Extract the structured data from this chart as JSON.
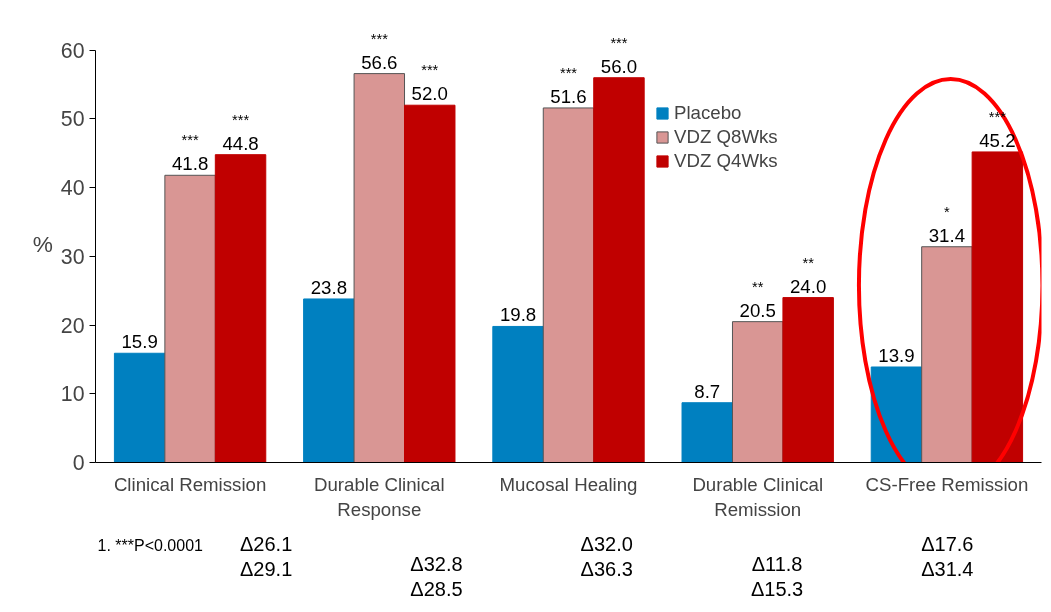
{
  "chart_data": {
    "type": "bar",
    "ylabel": "%",
    "categories": [
      "Clinical Remission",
      "Durable Clinical Response",
      "Mucosal Healing",
      "Durable Clinical Remission",
      "CS-Free Remission"
    ],
    "series": [
      {
        "name": "Placebo",
        "color": "#0080c0",
        "values": [
          15.9,
          23.8,
          19.8,
          8.7,
          13.9
        ],
        "value_labels": [
          "15.9",
          "23.8",
          "19.8",
          "8.7",
          "13.9"
        ]
      },
      {
        "name": "VDZ Q8Wks",
        "color": "#d99694",
        "values": [
          41.8,
          56.6,
          51.6,
          20.5,
          31.4
        ],
        "value_labels": [
          "41.8",
          "56.6",
          "51.6",
          "20.5",
          "31.4"
        ]
      },
      {
        "name": "VDZ Q4Wks",
        "color": "#c00000",
        "values": [
          44.8,
          52.0,
          56.0,
          24.0,
          45.2
        ],
        "value_labels": [
          "44.8",
          "52.0",
          "56.0",
          "24.0",
          "45.2"
        ]
      }
    ],
    "ylim": [
      0,
      60
    ],
    "yticks": [
      0,
      10,
      20,
      30,
      40,
      50,
      60
    ],
    "legend": "top right",
    "grid": false,
    "annotations": [
      "***",
      "***",
      "***",
      "***",
      "***",
      "***",
      "**",
      "**",
      "*",
      "***",
      "1. ***P<0.0001",
      "Δ26.1\nΔ29.1",
      "Δ32.8\nΔ28.5",
      "Δ32.0\nΔ36.3",
      "Δ11.8\nΔ15.3",
      "Δ17.6\nΔ31.4"
    ]
  }
}
